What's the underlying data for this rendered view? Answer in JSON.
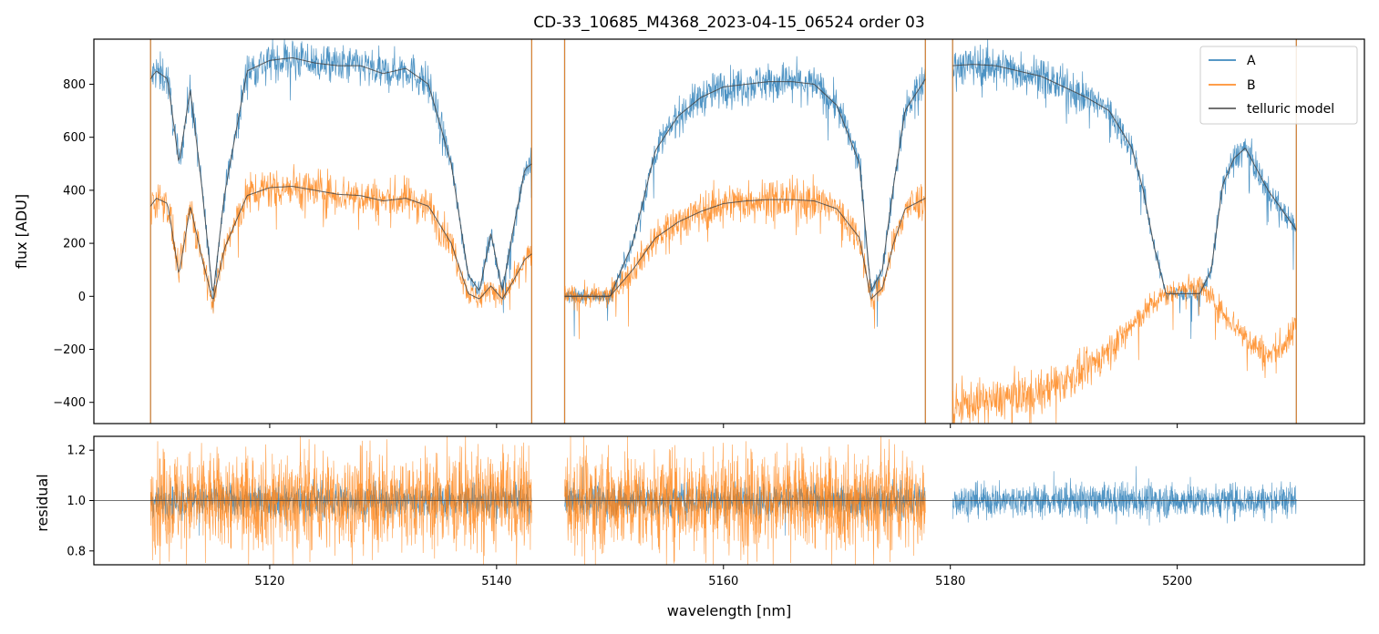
{
  "chart_data": {
    "type": "line",
    "title": "CD-33_10685_M4368_2023-04-15_06524  order 03",
    "xlabel": "wavelength [nm]",
    "xlim": [
      5104.5,
      5216.5
    ],
    "x_ticks": [
      5120,
      5140,
      5160,
      5180,
      5200
    ],
    "colors": {
      "A": "#1f77b4",
      "B": "#ff7f0e",
      "model": "#444444"
    },
    "legend": {
      "placement": "top-right",
      "entries": [
        "A",
        "B",
        "telluric model"
      ]
    },
    "top_panel": {
      "ylabel": "flux [ADU]",
      "ylim": [
        -480,
        970
      ],
      "y_ticks": [
        -400,
        -200,
        0,
        200,
        400,
        600,
        800
      ],
      "series": [
        {
          "name": "A",
          "segments": [
            {
              "x": [
                5109.5,
                5110,
                5111,
                5112,
                5113,
                5114,
                5115,
                5116,
                5118,
                5120,
                5122,
                5124,
                5126,
                5128,
                5130,
                5132,
                5134,
                5136,
                5137.5,
                5138.5,
                5139.5,
                5140.5,
                5141.5,
                5142.5,
                5143.1
              ],
              "y": [
                820,
                850,
                820,
                500,
                780,
                420,
                0,
                380,
                850,
                890,
                900,
                880,
                870,
                870,
                840,
                860,
                800,
                500,
                80,
                20,
                240,
                20,
                260,
                480,
                500
              ]
            },
            {
              "x": [
                5146,
                5148,
                5150,
                5152,
                5154,
                5156,
                5158,
                5160,
                5162,
                5164,
                5166,
                5168,
                5170,
                5172,
                5173,
                5174,
                5175,
                5176,
                5177.8
              ],
              "y": [
                0,
                0,
                0,
                200,
                550,
                680,
                750,
                790,
                800,
                810,
                810,
                800,
                720,
                500,
                20,
                100,
                420,
                700,
                820
              ]
            },
            {
              "x": [
                5180.2,
                5182,
                5184,
                5186,
                5188,
                5190,
                5192,
                5194,
                5196,
                5197,
                5198,
                5199,
                5200,
                5202,
                5203,
                5204,
                5205,
                5206,
                5207,
                5208,
                5209,
                5210,
                5210.5
              ],
              "y": [
                870,
                875,
                870,
                850,
                830,
                790,
                750,
                700,
                560,
                400,
                180,
                10,
                10,
                10,
                100,
                420,
                520,
                560,
                480,
                400,
                340,
                280,
                250
              ]
            }
          ]
        },
        {
          "name": "B",
          "segments": [
            {
              "x": [
                5109.5,
                5110,
                5111,
                5112,
                5113,
                5114,
                5115,
                5116,
                5118,
                5120,
                5122,
                5124,
                5126,
                5128,
                5130,
                5132,
                5134,
                5136,
                5137.5,
                5138.5,
                5139.5,
                5140.5,
                5141.5,
                5142.5,
                5143.1
              ],
              "y": [
                340,
                370,
                350,
                80,
                340,
                150,
                -20,
                180,
                380,
                410,
                415,
                400,
                385,
                380,
                360,
                370,
                340,
                200,
                10,
                -10,
                40,
                -10,
                60,
                140,
                160
              ]
            },
            {
              "x": [
                5146,
                5148,
                5150,
                5152,
                5154,
                5156,
                5158,
                5160,
                5162,
                5164,
                5166,
                5168,
                5170,
                5172,
                5173,
                5174,
                5175,
                5176,
                5177.8
              ],
              "y": [
                0,
                0,
                0,
                100,
                220,
                280,
                320,
                350,
                360,
                365,
                365,
                360,
                330,
                220,
                -10,
                30,
                200,
                330,
                370
              ]
            },
            {
              "x": [
                5180.2,
                5182,
                5184,
                5186,
                5188,
                5190,
                5192,
                5194,
                5196,
                5198,
                5200,
                5202,
                5204,
                5206,
                5208,
                5210,
                5210.5
              ],
              "y": [
                -420,
                -400,
                -390,
                -370,
                -360,
                -320,
                -280,
                -200,
                -110,
                -20,
                30,
                40,
                -60,
                -150,
                -230,
                -160,
                -90
              ]
            }
          ]
        },
        {
          "name": "telluric model",
          "segments": [
            {
              "x": [
                5109.5,
                5110,
                5111,
                5112,
                5113,
                5114,
                5115,
                5116,
                5118,
                5120,
                5122,
                5124,
                5126,
                5128,
                5130,
                5132,
                5134,
                5136,
                5137.5,
                5138.5,
                5139.5,
                5140.5,
                5141.5,
                5142.5,
                5143.1
              ],
              "y": [
                820,
                850,
                820,
                500,
                780,
                420,
                0,
                380,
                850,
                890,
                900,
                880,
                870,
                870,
                840,
                860,
                800,
                500,
                80,
                20,
                240,
                20,
                260,
                480,
                500
              ]
            },
            {
              "x": [
                5109.5,
                5110,
                5111,
                5112,
                5113,
                5114,
                5115,
                5116,
                5118,
                5120,
                5122,
                5124,
                5126,
                5128,
                5130,
                5132,
                5134,
                5136,
                5137.5,
                5138.5,
                5139.5,
                5140.5,
                5141.5,
                5142.5,
                5143.1
              ],
              "y": [
                340,
                370,
                350,
                80,
                340,
                150,
                -20,
                180,
                380,
                410,
                415,
                400,
                385,
                380,
                360,
                370,
                340,
                200,
                10,
                -10,
                40,
                -10,
                60,
                140,
                160
              ]
            },
            {
              "x": [
                5146,
                5148,
                5150,
                5152,
                5154,
                5156,
                5158,
                5160,
                5162,
                5164,
                5166,
                5168,
                5170,
                5172,
                5173,
                5174,
                5175,
                5176,
                5177.8
              ],
              "y": [
                0,
                0,
                0,
                200,
                550,
                680,
                750,
                790,
                800,
                810,
                810,
                800,
                720,
                500,
                20,
                100,
                420,
                700,
                820
              ]
            },
            {
              "x": [
                5146,
                5148,
                5150,
                5152,
                5154,
                5156,
                5158,
                5160,
                5162,
                5164,
                5166,
                5168,
                5170,
                5172,
                5173,
                5174,
                5175,
                5176,
                5177.8
              ],
              "y": [
                0,
                0,
                0,
                100,
                220,
                280,
                320,
                350,
                360,
                365,
                365,
                360,
                330,
                220,
                -10,
                30,
                200,
                330,
                370
              ]
            },
            {
              "x": [
                5180.2,
                5182,
                5184,
                5186,
                5188,
                5190,
                5192,
                5194,
                5196,
                5197,
                5198,
                5199,
                5200,
                5202,
                5203,
                5204,
                5205,
                5206,
                5207,
                5208,
                5209,
                5210,
                5210.5
              ],
              "y": [
                870,
                875,
                870,
                850,
                830,
                790,
                750,
                700,
                560,
                400,
                180,
                10,
                10,
                10,
                100,
                420,
                520,
                560,
                480,
                400,
                340,
                280,
                250
              ]
            }
          ]
        }
      ]
    },
    "bottom_panel": {
      "ylabel": "residual",
      "ylim": [
        0.745,
        1.255
      ],
      "y_ticks": [
        0.8,
        1.0,
        1.2
      ],
      "reference_line": 1.0,
      "series": [
        {
          "name": "A",
          "ranges": [
            [
              5109.5,
              5143.1
            ],
            [
              5146,
              5177.8
            ],
            [
              5180.2,
              5210.5
            ]
          ],
          "center": 1.0,
          "scatter": 0.06
        },
        {
          "name": "B",
          "ranges": [
            [
              5109.5,
              5143.1
            ],
            [
              5146,
              5177.8
            ]
          ],
          "center": 1.0,
          "scatter": 0.18
        }
      ]
    }
  }
}
